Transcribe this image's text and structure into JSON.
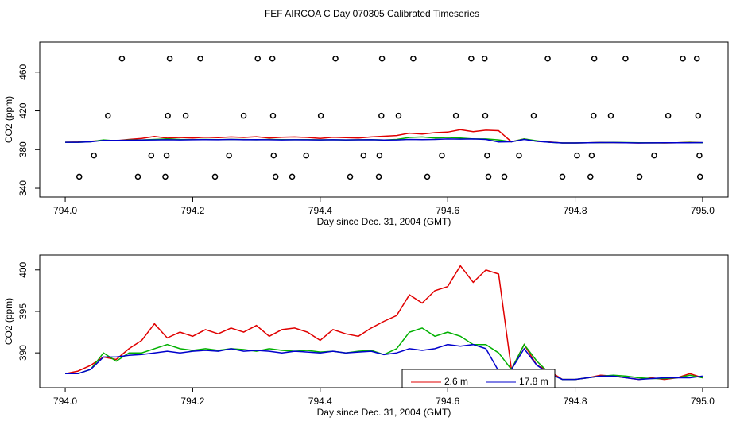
{
  "chart_data": [
    {
      "type": "line",
      "title": "FEF AIRCOA C  Day 070305  Calibrated Timeseries",
      "x_label": "Day since Dec. 31, 2004 (GMT)",
      "y_label": "CO2 (ppm)",
      "xlim": [
        793.96,
        795.04
      ],
      "ylim": [
        331,
        491
      ],
      "xticks": [
        {
          "value": 794,
          "label": "794.0"
        },
        794.2,
        794.4,
        794.6,
        794.8,
        {
          "value": 795,
          "label": "795.0"
        }
      ],
      "yticks": [
        340,
        380,
        420,
        460
      ],
      "x": [
        794.0,
        794.02,
        794.04,
        794.06,
        794.08,
        794.1,
        794.12,
        794.14,
        794.16,
        794.18,
        794.2,
        794.22,
        794.24,
        794.26,
        794.28,
        794.3,
        794.32,
        794.34,
        794.36,
        794.38,
        794.4,
        794.42,
        794.44,
        794.46,
        794.48,
        794.5,
        794.52,
        794.54,
        794.56,
        794.58,
        794.6,
        794.62,
        794.64,
        794.66,
        794.68,
        794.7,
        794.72,
        794.74,
        794.76,
        794.78,
        794.8,
        794.82,
        794.84,
        794.86,
        794.88,
        794.9,
        794.92,
        794.94,
        794.96,
        794.98,
        795.0
      ],
      "series": [
        {
          "color": "#e00000",
          "values": [
            387.5,
            387.8,
            388.5,
            389.5,
            389.2,
            390.5,
            391.5,
            393.5,
            391.8,
            392.5,
            392.0,
            392.8,
            392.3,
            393.0,
            392.5,
            393.3,
            392.0,
            392.8,
            393.0,
            392.5,
            391.5,
            392.8,
            392.3,
            392.0,
            393.0,
            393.8,
            394.5,
            397.0,
            396.0,
            397.5,
            398.0,
            400.5,
            398.5,
            400.0,
            399.5,
            388.0,
            391.0,
            388.5,
            387.8,
            386.8,
            386.8,
            387.0,
            387.3,
            387.2,
            387.0,
            386.8,
            387.0,
            386.8,
            387.0,
            387.5,
            387.0
          ]
        },
        {
          "color": "#00b000",
          "values": [
            387.5,
            387.5,
            388,
            390,
            389,
            390,
            390,
            390.5,
            391,
            390.5,
            390.3,
            390.5,
            390.3,
            390.5,
            390.4,
            390.2,
            390.5,
            390.3,
            390.2,
            390.3,
            390.1,
            390.2,
            390,
            390.2,
            390.3,
            389.8,
            390.5,
            392.5,
            393,
            392,
            392.5,
            392,
            391,
            391,
            390,
            388,
            391,
            389,
            387.5,
            386.8,
            386.8,
            387,
            387.2,
            387.3,
            387.2,
            387,
            386.9,
            386.9,
            387,
            387.3,
            387.0
          ]
        },
        {
          "color": "#0000cc",
          "values": [
            387.5,
            387.5,
            388,
            389.5,
            389.5,
            389.7,
            389.8,
            390,
            390.2,
            390,
            390.2,
            390.3,
            390.2,
            390.5,
            390.2,
            390.3,
            390.2,
            390,
            390.2,
            390.1,
            390,
            390.2,
            390,
            390.1,
            390.2,
            389.8,
            390,
            390.5,
            390.3,
            390.5,
            391,
            390.8,
            391,
            390.5,
            387.8,
            388,
            390.5,
            388.5,
            387.5,
            386.8,
            386.8,
            387,
            387.2,
            387.2,
            387,
            386.8,
            386.9,
            387,
            387,
            387,
            387.2
          ]
        },
        {
          "type": "scatter",
          "color": "#000000",
          "x": [
            794.089,
            794.164,
            794.212,
            794.302,
            794.325,
            794.424,
            794.497,
            794.546,
            794.637,
            794.658,
            794.757,
            794.83,
            794.879,
            794.969,
            794.991,
            794.067,
            794.161,
            794.189,
            794.28,
            794.326,
            794.401,
            794.496,
            794.523,
            794.613,
            794.659,
            794.735,
            794.829,
            794.856,
            794.946,
            794.993,
            794.045,
            794.135,
            794.159,
            794.257,
            794.327,
            794.378,
            794.468,
            794.493,
            794.591,
            794.662,
            794.712,
            794.803,
            794.826,
            794.924,
            794.995,
            794.022,
            794.114,
            794.157,
            794.235,
            794.33,
            794.356,
            794.447,
            794.492,
            794.568,
            794.664,
            794.689,
            794.78,
            794.824,
            794.901,
            794.996
          ],
          "values": [
            474,
            474,
            474,
            474,
            474,
            474,
            474,
            474,
            474,
            474,
            474,
            474,
            474,
            474,
            474,
            415,
            415,
            415,
            415,
            415,
            415,
            415,
            415,
            415,
            415,
            415,
            415,
            415,
            415,
            415,
            374,
            374,
            374,
            374,
            374,
            374,
            374,
            374,
            374,
            374,
            374,
            374,
            374,
            374,
            374,
            352,
            352,
            352,
            352,
            352,
            352,
            352,
            352,
            352,
            352,
            352,
            352,
            352,
            352,
            352
          ]
        }
      ]
    },
    {
      "type": "line",
      "x_label": "Day since Dec. 31, 2004 (GMT)",
      "y_label": "CO2 (ppm)",
      "xlim": [
        793.96,
        795.04
      ],
      "ylim": [
        385.8,
        401.8
      ],
      "xticks": [
        {
          "value": 794,
          "label": "794.0"
        },
        794.2,
        794.4,
        794.6,
        794.8,
        {
          "value": 795,
          "label": "795.0"
        }
      ],
      "yticks": [
        390,
        395,
        400
      ],
      "legend": "bottom",
      "x": [
        794.0,
        794.02,
        794.04,
        794.06,
        794.08,
        794.1,
        794.12,
        794.14,
        794.16,
        794.18,
        794.2,
        794.22,
        794.24,
        794.26,
        794.28,
        794.3,
        794.32,
        794.34,
        794.36,
        794.38,
        794.4,
        794.42,
        794.44,
        794.46,
        794.48,
        794.5,
        794.52,
        794.54,
        794.56,
        794.58,
        794.6,
        794.62,
        794.64,
        794.66,
        794.68,
        794.7,
        794.72,
        794.74,
        794.76,
        794.78,
        794.8,
        794.82,
        794.84,
        794.86,
        794.88,
        794.9,
        794.92,
        794.94,
        794.96,
        794.98,
        795.0
      ],
      "series": [
        {
          "name": "2.6 m",
          "color": "#e00000",
          "values": [
            387.5,
            387.8,
            388.5,
            389.5,
            389.2,
            390.5,
            391.5,
            393.5,
            391.8,
            392.5,
            392.0,
            392.8,
            392.3,
            393.0,
            392.5,
            393.3,
            392.0,
            392.8,
            393.0,
            392.5,
            391.5,
            392.8,
            392.3,
            392.0,
            393.0,
            393.8,
            394.5,
            397.0,
            396.0,
            397.5,
            398.0,
            400.5,
            398.5,
            400.0,
            399.5,
            388.0,
            391.0,
            388.5,
            387.8,
            386.8,
            386.8,
            387.0,
            387.3,
            387.2,
            387.0,
            386.8,
            387.0,
            386.8,
            387.0,
            387.5,
            387.0
          ]
        },
        {
          "color": "#00b000",
          "values": [
            387.5,
            387.5,
            388,
            390,
            389,
            390,
            390,
            390.5,
            391,
            390.5,
            390.3,
            390.5,
            390.3,
            390.5,
            390.4,
            390.2,
            390.5,
            390.3,
            390.2,
            390.3,
            390.1,
            390.2,
            390,
            390.2,
            390.3,
            389.8,
            390.5,
            392.5,
            393,
            392,
            392.5,
            392,
            391,
            391,
            390,
            388,
            391,
            389,
            387.5,
            386.8,
            386.8,
            387,
            387.2,
            387.3,
            387.2,
            387,
            386.9,
            386.9,
            387,
            387.3,
            387.0
          ]
        },
        {
          "name": "17.8 m",
          "color": "#0000cc",
          "values": [
            387.5,
            387.5,
            388,
            389.5,
            389.5,
            389.7,
            389.8,
            390,
            390.2,
            390,
            390.2,
            390.3,
            390.2,
            390.5,
            390.2,
            390.3,
            390.2,
            390,
            390.2,
            390.1,
            390,
            390.2,
            390,
            390.1,
            390.2,
            389.8,
            390,
            390.5,
            390.3,
            390.5,
            391,
            390.8,
            391,
            390.5,
            387.8,
            388,
            390.5,
            388.5,
            387.5,
            386.8,
            386.8,
            387,
            387.2,
            387.2,
            387,
            386.8,
            386.9,
            387,
            387,
            387,
            387.2
          ]
        }
      ]
    }
  ]
}
